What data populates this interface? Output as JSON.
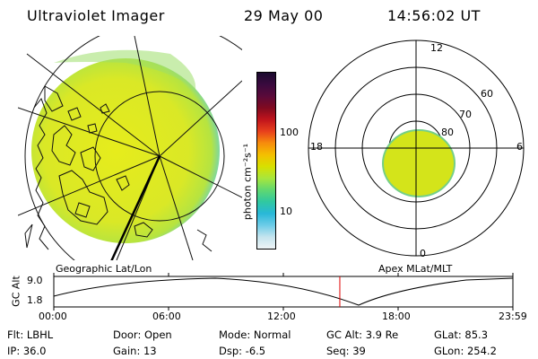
{
  "header": {
    "instrument": "Ultraviolet Imager",
    "date": "29 May 00",
    "time": "14:56:02 UT"
  },
  "geo_panel": {
    "label": "Geographic Lat/Lon"
  },
  "polar_panel": {
    "label": "Apex MLat/MLT",
    "mlt_labels": {
      "top": "12",
      "left": "18",
      "right": "6",
      "bottom": "0"
    },
    "lat_labels": [
      "80",
      "70",
      "60"
    ]
  },
  "colorbar": {
    "unit": "photon cm⁻²s⁻¹",
    "ticks": [
      "100",
      "10"
    ],
    "colors": [
      "#1a0a2e",
      "#3a0a3e",
      "#5a0a3a",
      "#800a20",
      "#c0141c",
      "#e8401c",
      "#f78c0c",
      "#f4c000",
      "#d8e000",
      "#a8e63c",
      "#60d870",
      "#30c8a0",
      "#28b8d8",
      "#6ccce8",
      "#c4e4ee",
      "#eef4f6"
    ]
  },
  "timeline": {
    "axis_label": "GC Alt",
    "ymax": "9.0",
    "ymin": "1.8",
    "ticks": [
      "00:00",
      "06:00",
      "12:00",
      "18:00",
      "23:59"
    ],
    "current_time_fraction": 0.623
  },
  "info": {
    "flt": "Flt: LBHL",
    "ip": "IP: 36.0",
    "door": "Door: Open",
    "gain": "Gain: 13",
    "mode": "Mode: Normal",
    "dsp": "Dsp:    -6.5",
    "gcalt": "GC Alt: 3.9 Re",
    "seq": "Seq: 39",
    "glat": "GLat:  85.3",
    "glon": "GLon: 254.2"
  }
}
